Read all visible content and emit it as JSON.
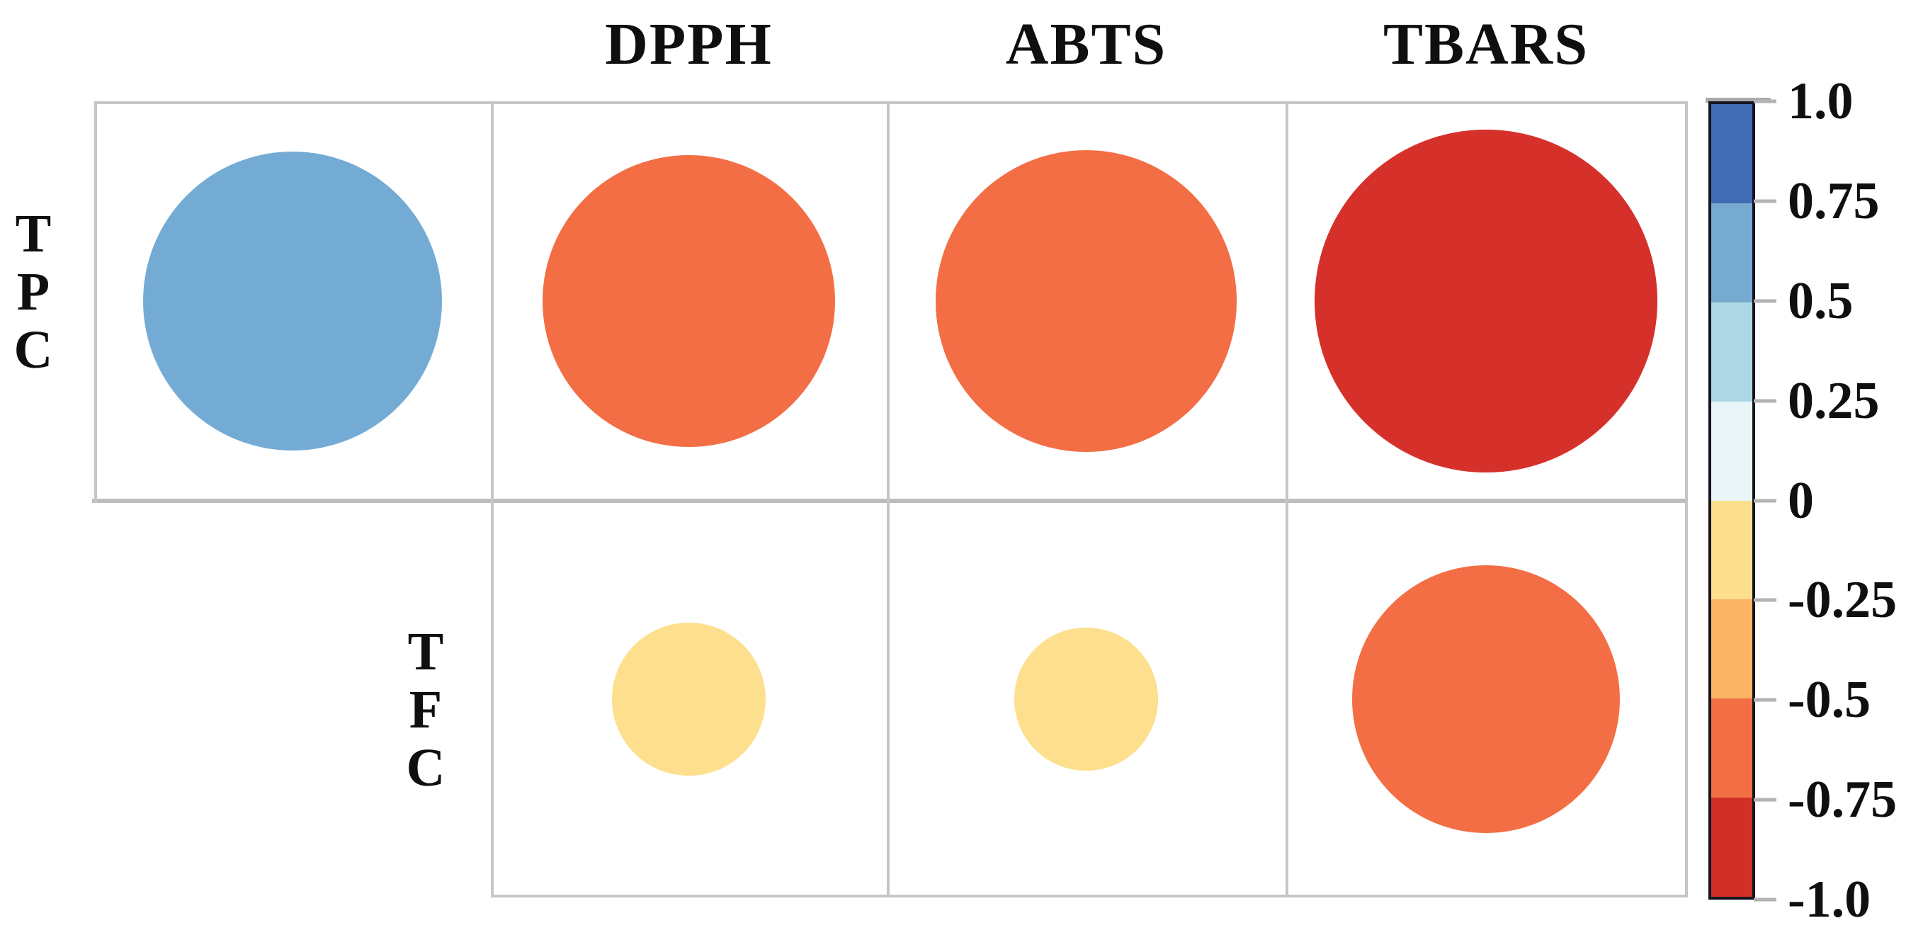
{
  "chart_data": {
    "type": "bubble",
    "subtype": "correlation-matrix",
    "title": "",
    "row_labels": [
      "TPC",
      "TFC"
    ],
    "column_headers": [
      "DPPH",
      "ABTS",
      "TBARS"
    ],
    "grid": "on",
    "legend_position": "right-colorbar",
    "colorbar": {
      "range": [
        -1.0,
        1.0
      ],
      "tick_labels": [
        "1.0",
        "0.75",
        "0.5",
        "0.25",
        "0",
        "-0.25",
        "-0.5",
        "-0.75",
        "-1.0"
      ],
      "segment_colors_top_to_bottom": [
        "#3f6cb4",
        "#76aacf",
        "#add8e3",
        "#e9f5f7",
        "#fcdf8e",
        "#fbb466",
        "#f26e44",
        "#d13028"
      ]
    },
    "encoding_note": "circle area/color encode correlation; values estimated from rendered size and colorbar bin",
    "cells": [
      {
        "row": "TPC",
        "row_index": 0,
        "col": "",
        "col_index": 0,
        "value": 0.65,
        "color": "#74abd4"
      },
      {
        "row": "TPC",
        "row_index": 0,
        "col": "DPPH",
        "col_index": 1,
        "value": -0.62,
        "color": "#f36e44"
      },
      {
        "row": "TPC",
        "row_index": 0,
        "col": "ABTS",
        "col_index": 2,
        "value": -0.66,
        "color": "#f36e44"
      },
      {
        "row": "TPC",
        "row_index": 0,
        "col": "TBARS",
        "col_index": 3,
        "value": -0.85,
        "color": "#d6302a"
      },
      {
        "row": "TFC",
        "row_index": 1,
        "col": "DPPH",
        "col_index": 1,
        "value": -0.17,
        "color": "#fddf8d"
      },
      {
        "row": "TFC",
        "row_index": 1,
        "col": "ABTS",
        "col_index": 2,
        "value": -0.15,
        "color": "#fddf8d"
      },
      {
        "row": "TFC",
        "row_index": 1,
        "col": "TBARS",
        "col_index": 3,
        "value": -0.52,
        "color": "#f36e44"
      }
    ]
  }
}
